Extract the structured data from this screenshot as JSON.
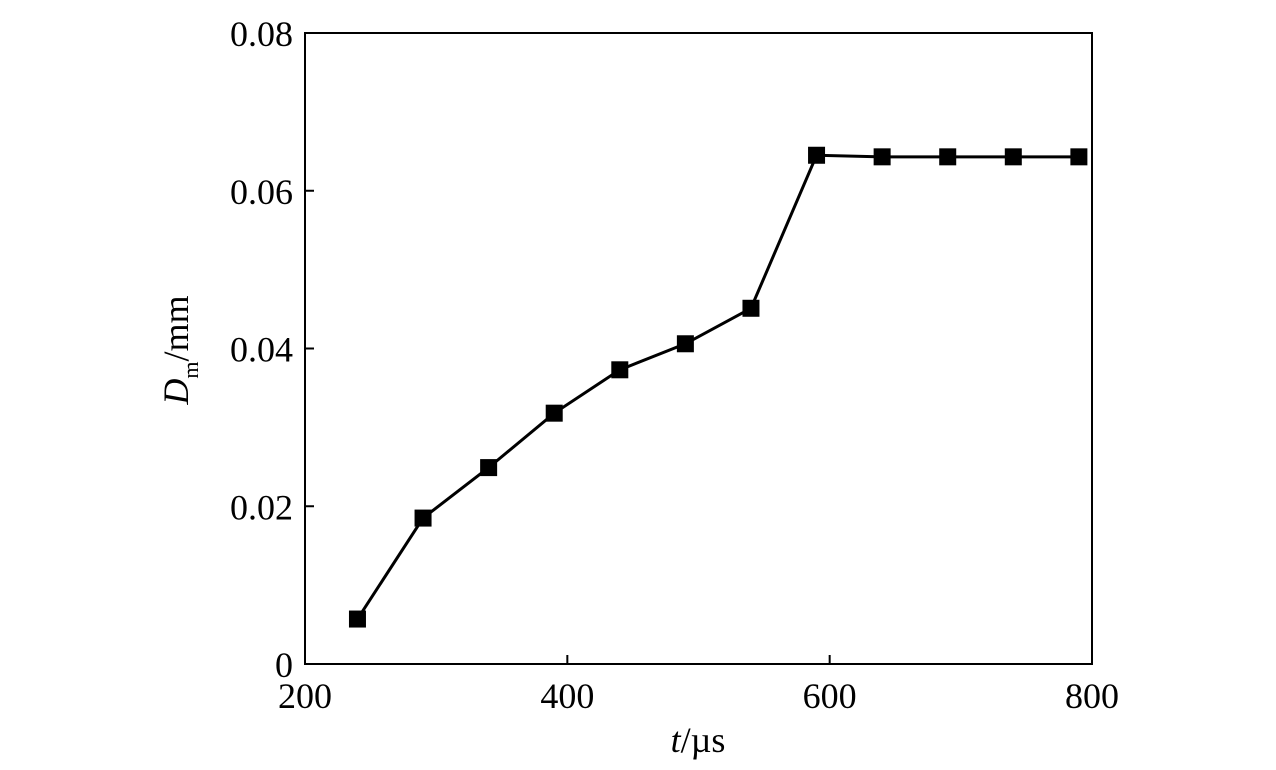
{
  "chart_data": {
    "type": "line",
    "title": "",
    "xlabel": {
      "var": "t",
      "unit": "/µs"
    },
    "ylabel": {
      "var": "D",
      "sub": "m",
      "unit": "/mm"
    },
    "xlim": [
      200,
      800
    ],
    "ylim": [
      0,
      0.08
    ],
    "xticks": [
      200,
      400,
      600,
      800
    ],
    "yticks": [
      0,
      0.02,
      0.04,
      0.06,
      0.08
    ],
    "xtick_labels": [
      "200",
      "400",
      "600",
      "800"
    ],
    "ytick_labels": [
      "0",
      "0.02",
      "0.04",
      "0.06",
      "0.08"
    ],
    "grid": false,
    "legend": "none",
    "marker": "square",
    "color": "#000000",
    "series": [
      {
        "x": [
          240,
          290,
          340,
          390,
          440,
          490,
          540,
          590,
          640,
          690,
          740,
          790
        ],
        "y": [
          0.0057,
          0.0185,
          0.0249,
          0.0318,
          0.0373,
          0.0406,
          0.0451,
          0.0645,
          0.0643,
          0.0643,
          0.0643,
          0.0643
        ]
      }
    ]
  }
}
